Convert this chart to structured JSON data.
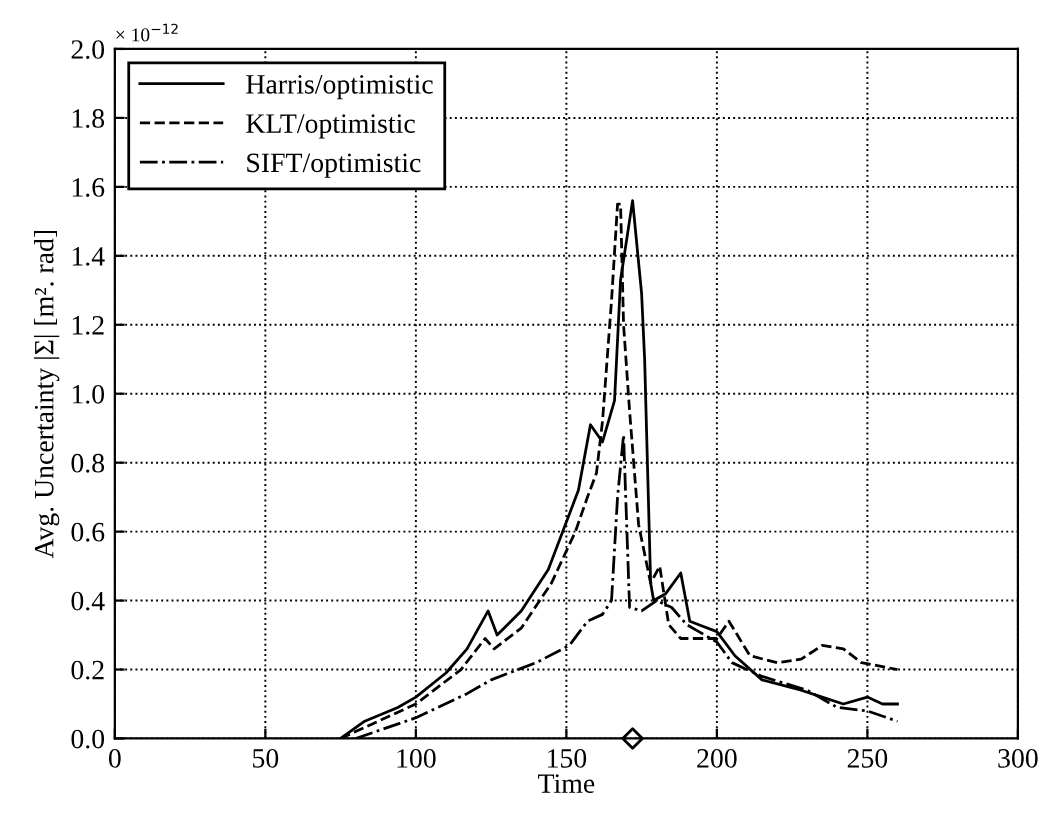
{
  "chart_data": {
    "type": "line",
    "xlabel": "Time",
    "ylabel": "Avg. Uncertainty |Σ| [m². rad]",
    "annotations": [
      "× 10$^{−12}$"
    ],
    "xlim": [
      0,
      300
    ],
    "xticks": [
      0,
      50,
      100,
      150,
      200,
      250,
      300
    ],
    "ylim": [
      0,
      2.0
    ],
    "yticks": [
      {
        "value": 0,
        "label": "0.0"
      },
      {
        "value": 0.2,
        "label": "0.2"
      },
      {
        "value": 0.4,
        "label": "0.4"
      },
      {
        "value": 0.6,
        "label": "0.6"
      },
      {
        "value": 0.8,
        "label": "0.8"
      },
      {
        "value": 1.0,
        "label": "1.0"
      },
      {
        "value": 1.2,
        "label": "1.2"
      },
      {
        "value": 1.4,
        "label": "1.4"
      },
      {
        "value": 1.6,
        "label": "1.6"
      },
      {
        "value": 1.8,
        "label": "1.8"
      },
      {
        "value": 2.0,
        "label": "2.0"
      }
    ],
    "grid": true,
    "legend": "top left",
    "series": [
      {
        "name": "Harris/optimistic",
        "color": "#000000",
        "line_style": "solid",
        "x": [
          75,
          83,
          94,
          100,
          110,
          117,
          124,
          127,
          135,
          144,
          154,
          158,
          162,
          166,
          168,
          172,
          175,
          176,
          178,
          179,
          183,
          188,
          191,
          194,
          200,
          206,
          215,
          228,
          235,
          242,
          250,
          255,
          260
        ],
        "values": [
          0,
          0.05,
          0.09,
          0.12,
          0.19,
          0.26,
          0.37,
          0.3,
          0.37,
          0.49,
          0.72,
          0.91,
          0.86,
          0.98,
          1.33,
          1.56,
          1.29,
          1.1,
          0.45,
          0.4,
          0.42,
          0.48,
          0.34,
          0.33,
          0.31,
          0.24,
          0.17,
          0.14,
          0.12,
          0.1,
          0.12,
          0.1,
          0.1
        ]
      },
      {
        "name": "KLT/optimistic",
        "color": "#000000",
        "line_style": "dashed",
        "x": [
          75,
          90,
          100,
          115,
          123,
          126,
          135,
          145,
          153,
          157,
          160,
          162,
          165,
          167,
          168,
          169,
          171,
          174,
          178,
          181,
          184,
          188,
          200,
          204,
          211,
          220,
          228,
          235,
          242,
          248,
          260
        ],
        "values": [
          0,
          0.06,
          0.1,
          0.2,
          0.29,
          0.26,
          0.32,
          0.45,
          0.6,
          0.7,
          0.77,
          0.92,
          1.27,
          1.55,
          1.55,
          1.2,
          0.95,
          0.62,
          0.45,
          0.5,
          0.33,
          0.29,
          0.29,
          0.34,
          0.24,
          0.22,
          0.23,
          0.27,
          0.26,
          0.22,
          0.2
        ]
      },
      {
        "name": "SIFT/optimistic",
        "color": "#000000",
        "line_style": "dashdot",
        "x": [
          80,
          100,
          117,
          125,
          140,
          151,
          157,
          162,
          165,
          167,
          169,
          171,
          175,
          180,
          185,
          190,
          200,
          205,
          215,
          230,
          240,
          250,
          260
        ],
        "values": [
          0,
          0.06,
          0.13,
          0.17,
          0.22,
          0.27,
          0.34,
          0.36,
          0.4,
          0.7,
          0.88,
          0.38,
          0.37,
          0.4,
          0.38,
          0.33,
          0.28,
          0.22,
          0.18,
          0.14,
          0.09,
          0.08,
          0.05
        ]
      },
      {
        "type": "scatter",
        "marker": "diamond",
        "color": "#000000",
        "x": [
          172
        ],
        "values": [
          0
        ]
      }
    ]
  }
}
